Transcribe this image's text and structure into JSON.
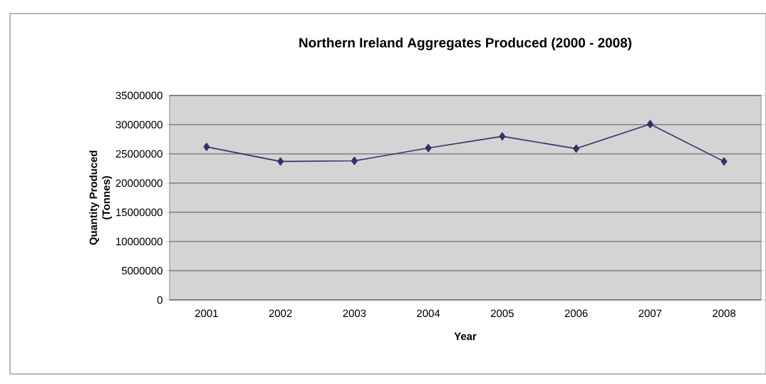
{
  "chart_data": {
    "type": "line",
    "title": "Northern Ireland Aggregates Produced (2000 - 2008)",
    "xlabel": "Year",
    "ylabel": "Quantity Produced (Tonnes)",
    "categories": [
      "2001",
      "2002",
      "2003",
      "2004",
      "2005",
      "2006",
      "2007",
      "2008"
    ],
    "series": [
      {
        "color": "#2e3566",
        "values": [
          26200000,
          23700000,
          23800000,
          26000000,
          28000000,
          25900000,
          30100000,
          23700000
        ]
      }
    ],
    "ylim": [
      0,
      35000000
    ],
    "yticks": [
      0,
      5000000,
      10000000,
      15000000,
      20000000,
      25000000,
      30000000,
      35000000
    ],
    "grid": "y",
    "marker": "diamond",
    "line_style": "solid"
  }
}
